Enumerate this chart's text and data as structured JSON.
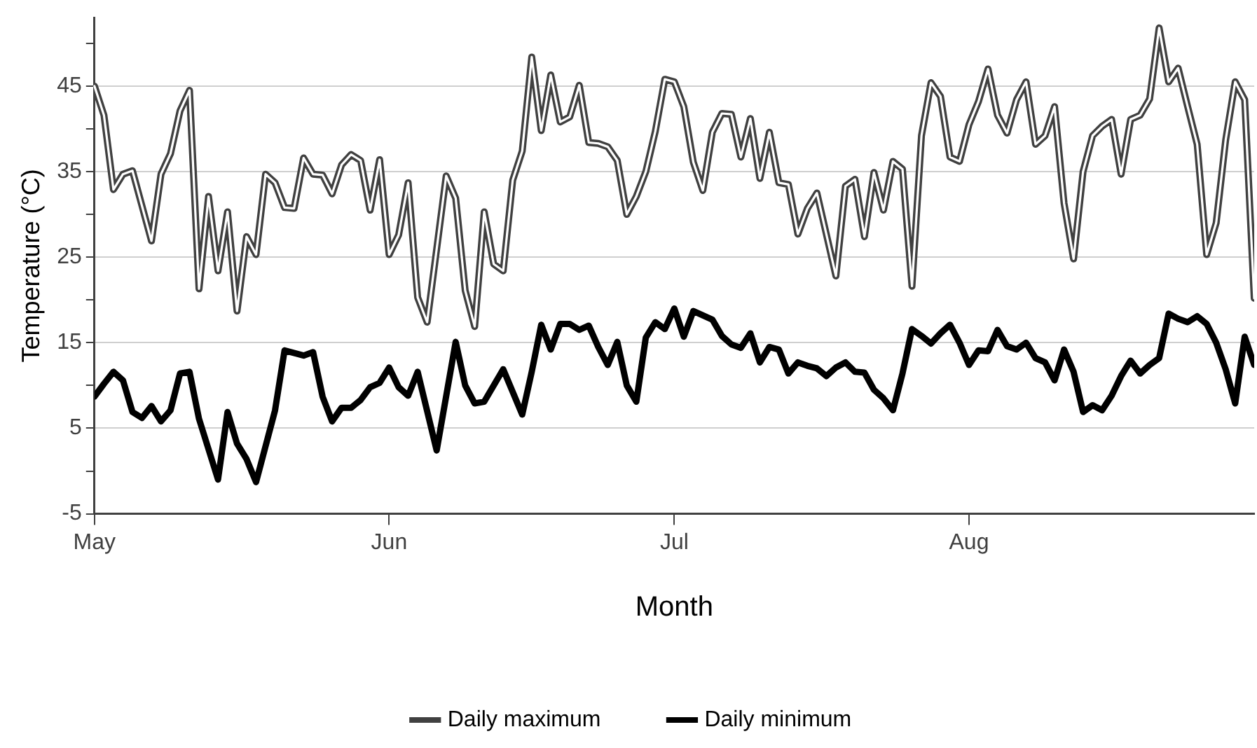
{
  "chart_data": {
    "type": "line",
    "xlabel": "Month",
    "ylabel": "Temperature (°C)",
    "xlim": [
      "--05-01",
      "--08-31"
    ],
    "xticks": [
      {
        "value": "--05-01",
        "label": "May"
      },
      {
        "value": "--06-01",
        "label": "Jun"
      },
      {
        "value": "--07-01",
        "label": "Jul"
      },
      {
        "value": "--08-01",
        "label": "Aug"
      }
    ],
    "ylim": [
      -5,
      53
    ],
    "yticks": [
      -5,
      {
        "value": 0,
        "label": null
      },
      5,
      {
        "value": 10,
        "label": null
      },
      15,
      {
        "value": 20,
        "label": null
      },
      25,
      {
        "value": 30,
        "label": null
      },
      35,
      {
        "value": 40,
        "label": null
      },
      45,
      {
        "value": 50,
        "label": null
      }
    ],
    "grid": "y",
    "legend": "bottom",
    "marker": "none",
    "line_style": "solid",
    "series": [
      {
        "name": "Daily maximum",
        "color": "#404040",
        "x": [
          "--05-01",
          "--05-02",
          "--05-03",
          "--05-04",
          "--05-05",
          "--05-07",
          "--05-08",
          "--05-09",
          "--05-10",
          "--05-11",
          "--05-12",
          "--05-13",
          "--05-14",
          "--05-15",
          "--05-16",
          "--05-17",
          "--05-18",
          "--05-19",
          "--05-20",
          "--05-21",
          "--05-22",
          "--05-23",
          "--05-24",
          "--05-25",
          "--05-26",
          "--05-27",
          "--05-28",
          "--05-29",
          "--05-30",
          "--05-31",
          "--06-01",
          "--06-02",
          "--06-03",
          "--06-04",
          "--06-05",
          "--06-07",
          "--06-08",
          "--06-09",
          "--06-10",
          "--06-11",
          "--06-12",
          "--06-13",
          "--06-14",
          "--06-15",
          "--06-16",
          "--06-17",
          "--06-18",
          "--06-19",
          "--06-20",
          "--06-21",
          "--06-22",
          "--06-23",
          "--06-24",
          "--06-25",
          "--06-26",
          "--06-27",
          "--06-28",
          "--06-29",
          "--06-30",
          "--07-01",
          "--07-02",
          "--07-03",
          "--07-04",
          "--07-05",
          "--07-06",
          "--07-07",
          "--07-08",
          "--07-09",
          "--07-10",
          "--07-11",
          "--07-12",
          "--07-13",
          "--07-14",
          "--07-15",
          "--07-16",
          "--07-18",
          "--07-19",
          "--07-20",
          "--07-21",
          "--07-22",
          "--07-23",
          "--07-24",
          "--07-25",
          "--07-26",
          "--07-27",
          "--07-28",
          "--07-29",
          "--07-30",
          "--07-31",
          "--08-01",
          "--08-02",
          "--08-03",
          "--08-04",
          "--08-05",
          "--08-06",
          "--08-07",
          "--08-08",
          "--08-09",
          "--08-10",
          "--08-11",
          "--08-12",
          "--08-13",
          "--08-14",
          "--08-15",
          "--08-16",
          "--08-17",
          "--08-18",
          "--08-19",
          "--08-20",
          "--08-21",
          "--08-22",
          "--08-23",
          "--08-24",
          "--08-25",
          "--08-26",
          "--08-27",
          "--08-28",
          "--08-29",
          "--08-30",
          "--08-31"
        ],
        "values": [
          45.0,
          41.6,
          32.9,
          34.7,
          35.1,
          26.9,
          34.7,
          37.1,
          42.1,
          44.5,
          21.3,
          32.1,
          23.4,
          30.3,
          18.7,
          27.4,
          25.3,
          34.7,
          33.7,
          30.8,
          30.7,
          36.6,
          34.7,
          34.6,
          32.4,
          35.8,
          37.0,
          36.3,
          30.5,
          36.4,
          25.3,
          27.6,
          33.7,
          20.3,
          17.4,
          34.5,
          31.9,
          21.1,
          16.9,
          30.3,
          24.2,
          23.4,
          34.0,
          37.4,
          48.4,
          39.8,
          46.3,
          40.8,
          41.4,
          45.1,
          38.4,
          38.3,
          37.9,
          36.3,
          30.0,
          32.1,
          35.0,
          39.7,
          45.8,
          45.5,
          42.6,
          36.1,
          32.8,
          39.6,
          41.8,
          41.7,
          36.7,
          41.2,
          34.2,
          39.6,
          33.7,
          33.5,
          27.7,
          30.7,
          32.5,
          22.8,
          33.3,
          34.1,
          27.4,
          34.9,
          30.5,
          36.2,
          35.3,
          21.6,
          39.2,
          45.4,
          43.8,
          36.7,
          36.2,
          40.5,
          43.2,
          47.0,
          41.6,
          39.5,
          43.4,
          45.5,
          38.2,
          39.2,
          42.6,
          31.3,
          24.8,
          35.0,
          39.2,
          40.3,
          41.1,
          34.7,
          41.1,
          41.6,
          43.5,
          51.8,
          45.5,
          47.1,
          42.6,
          38.2,
          25.3,
          29.0,
          38.7,
          45.5,
          43.4,
          20.2
        ]
      },
      {
        "name": "Daily minimum",
        "color": "#000000",
        "x": [
          "--05-01",
          "--05-02",
          "--05-03",
          "--05-04",
          "--05-05",
          "--05-06",
          "--05-07",
          "--05-08",
          "--05-09",
          "--05-10",
          "--05-11",
          "--05-12",
          "--05-14",
          "--05-15",
          "--05-16",
          "--05-17",
          "--05-18",
          "--05-20",
          "--05-21",
          "--05-23",
          "--05-24",
          "--05-25",
          "--05-26",
          "--05-27",
          "--05-28",
          "--05-29",
          "--05-30",
          "--05-31",
          "--06-01",
          "--06-02",
          "--06-03",
          "--06-04",
          "--06-06",
          "--06-08",
          "--06-09",
          "--06-10",
          "--06-11",
          "--06-13",
          "--06-15",
          "--06-16",
          "--06-17",
          "--06-18",
          "--06-19",
          "--06-20",
          "--06-21",
          "--06-22",
          "--06-23",
          "--06-24",
          "--06-25",
          "--06-26",
          "--06-27",
          "--06-28",
          "--06-29",
          "--06-30",
          "--07-01",
          "--07-02",
          "--07-03",
          "--07-05",
          "--07-06",
          "--07-07",
          "--07-08",
          "--07-09",
          "--07-10",
          "--07-11",
          "--07-12",
          "--07-13",
          "--07-14",
          "--07-15",
          "--07-16",
          "--07-17",
          "--07-18",
          "--07-19",
          "--07-20",
          "--07-21",
          "--07-22",
          "--07-23",
          "--07-24",
          "--07-25",
          "--07-26",
          "--07-27",
          "--07-28",
          "--07-29",
          "--07-30",
          "--07-31",
          "--08-01",
          "--08-02",
          "--08-03",
          "--08-04",
          "--08-05",
          "--08-06",
          "--08-07",
          "--08-08",
          "--08-09",
          "--08-10",
          "--08-11",
          "--08-12",
          "--08-13",
          "--08-14",
          "--08-15",
          "--08-16",
          "--08-17",
          "--08-18",
          "--08-19",
          "--08-20",
          "--08-21",
          "--08-22",
          "--08-23",
          "--08-24",
          "--08-25",
          "--08-26",
          "--08-27",
          "--08-28",
          "--08-29",
          "--08-30",
          "--08-31"
        ],
        "values": [
          8.7,
          10.2,
          11.6,
          10.6,
          6.9,
          6.2,
          7.6,
          5.8,
          7.1,
          11.4,
          11.6,
          6.1,
          -1.0,
          6.9,
          3.2,
          1.4,
          -1.3,
          7.1,
          14.1,
          13.5,
          13.9,
          8.7,
          5.8,
          7.4,
          7.4,
          8.3,
          9.8,
          10.3,
          12.1,
          9.8,
          8.8,
          11.6,
          2.4,
          15.1,
          10.0,
          7.9,
          8.1,
          11.9,
          6.6,
          11.6,
          17.1,
          14.2,
          17.2,
          17.2,
          16.5,
          17.0,
          14.5,
          12.4,
          15.1,
          10.0,
          8.1,
          15.6,
          17.4,
          16.6,
          19.0,
          15.7,
          18.7,
          17.7,
          15.8,
          14.8,
          14.4,
          16.1,
          12.7,
          14.5,
          14.2,
          11.4,
          12.7,
          12.3,
          12.0,
          11.1,
          12.1,
          12.7,
          11.6,
          11.5,
          9.5,
          8.5,
          7.1,
          11.4,
          16.6,
          15.8,
          14.9,
          16.1,
          17.1,
          15.0,
          12.4,
          14.1,
          14.0,
          16.5,
          14.6,
          14.2,
          15.0,
          13.2,
          12.7,
          10.6,
          14.2,
          11.6,
          6.9,
          7.7,
          7.1,
          8.8,
          11.1,
          12.9,
          11.4,
          12.4,
          13.2,
          18.4,
          17.8,
          17.4,
          18.1,
          17.2,
          15.0,
          11.9,
          7.9,
          15.7,
          12.4
        ]
      }
    ]
  }
}
